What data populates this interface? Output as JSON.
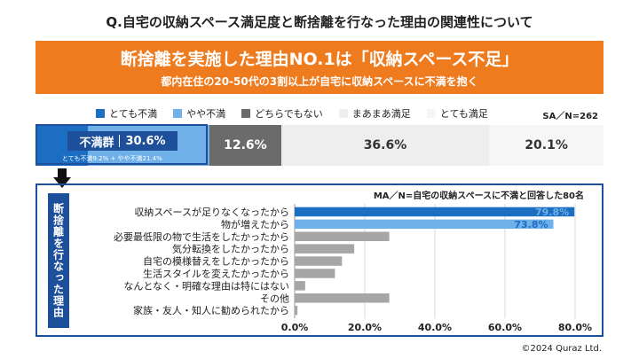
{
  "title": "Q.自宅の収納スペース満足度と断捨離を行なった理由の関連性について",
  "banner": {
    "headline": "断捨離を実施した理由NO.1は「収納スペース不足」",
    "sub": "都内在住の20-50代の3割以上が自宅に収納スペースに不満を抱く"
  },
  "colors": {
    "orange": "#ef7b1f",
    "navy": "#1d4f9a",
    "dark_blue": "#1b6ec2",
    "light_blue": "#6fb0e8",
    "dark_gray": "#6b6b6b",
    "light_gray": "#eeeeee",
    "lighter_gray": "#f6f6f6",
    "bar_gray": "#a6a6a6"
  },
  "satisfaction": {
    "sample": "SA／N=262",
    "legend": [
      "とても不満",
      "やや不満",
      "どちらでもない",
      "まあまあ満足",
      "とても満足"
    ],
    "segments": [
      {
        "label": "とても不満",
        "value": 9.2,
        "shown": ""
      },
      {
        "label": "やや不満",
        "value": 21.4,
        "shown": ""
      },
      {
        "label": "どちらでもない",
        "value": 12.6,
        "shown": "12.6%"
      },
      {
        "label": "まあまあ満足",
        "value": 36.6,
        "shown": "36.6%"
      },
      {
        "label": "とても満足",
        "value": 20.1,
        "shown": "20.1%"
      }
    ],
    "fuman_label": "不満群",
    "fuman_value": "30.6%",
    "fuman_note": "とても不満9.2% + やや不満21.4%"
  },
  "reasons_panel": {
    "side_label": "断捨離を行なった理由",
    "sample": "MA／N=自宅の収納スペースに不満と回答した80名"
  },
  "chart_data": {
    "type": "bar",
    "orientation": "horizontal",
    "categories": [
      "収納スペースが足りなくなったから",
      "物が増えたから",
      "必要最低限の物で生活をしたかったから",
      "気分転換をしたかったから",
      "自宅の模様替えをしたかったから",
      "生活スタイルを変えたかったから",
      "なんとなく・明確な理由は特にはない",
      "その他",
      "家族・友人・知人に勧められたから"
    ],
    "values": [
      79.8,
      73.8,
      27.0,
      17.0,
      13.5,
      11.5,
      3.0,
      27.0,
      0.8
    ],
    "value_labels": [
      "79.8%",
      "73.8%",
      "",
      "",
      "",
      "",
      "",
      "",
      ""
    ],
    "xlim": [
      0,
      80
    ],
    "xticks": [
      "0.0%",
      "20.0%",
      "40.0%",
      "60.0%",
      "80.0%"
    ],
    "grid": true
  },
  "copyright": "©2024 Quraz Ltd."
}
